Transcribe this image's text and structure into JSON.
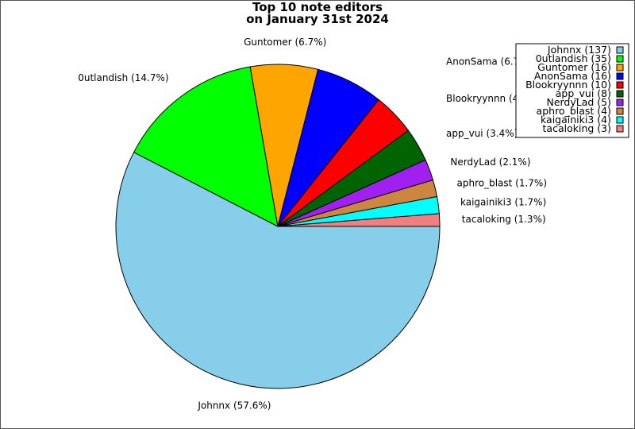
{
  "chart_data": {
    "type": "pie",
    "title_lines": [
      "Top 10 note editors",
      "on January 31st 2024"
    ],
    "slices": [
      {
        "name": "Johnnx",
        "value": 137,
        "percent_label": "Johnnx (57.6%)",
        "legend_label": "Johnnx (137)",
        "color": "#87CEEB"
      },
      {
        "name": "0utlandish",
        "value": 35,
        "percent_label": "0utlandish (14.7%)",
        "legend_label": "0utlandish (35)",
        "color": "#00FF00"
      },
      {
        "name": "Guntomer",
        "value": 16,
        "percent_label": "Guntomer (6.7%)",
        "legend_label": "Guntomer (16)",
        "color": "#FFA500"
      },
      {
        "name": "AnonSama",
        "value": 16,
        "percent_label": "AnonSama (6.7%)",
        "legend_label": "AnonSama (16)",
        "color": "#0000FF"
      },
      {
        "name": "Blookryynnn",
        "value": 10,
        "percent_label": "Blookryynnn (4.2%)",
        "legend_label": "Blookryynnn (10)",
        "color": "#FF0000"
      },
      {
        "name": "app_vui",
        "value": 8,
        "percent_label": "app_vui (3.4%)",
        "legend_label": "app_vui (8)",
        "color": "#006400"
      },
      {
        "name": "NerdyLad",
        "value": 5,
        "percent_label": "NerdyLad (2.1%)",
        "legend_label": "NerdyLad (5)",
        "color": "#A020F0"
      },
      {
        "name": "aphro_blast",
        "value": 4,
        "percent_label": "aphro_blast (1.7%)",
        "legend_label": "aphro_blast (4)",
        "color": "#CD853F"
      },
      {
        "name": "kaigainiki3",
        "value": 4,
        "percent_label": "kaigainiki3 (1.7%)",
        "legend_label": "kaigainiki3 (4)",
        "color": "#00FFFF"
      },
      {
        "name": "tacaloking",
        "value": 3,
        "percent_label": "tacaloking (1.3%)",
        "legend_label": "tacaloking (3)",
        "color": "#F08080"
      }
    ],
    "start_angle": "3 o'clock",
    "direction": "clockwise",
    "legend_position": "top-right"
  }
}
